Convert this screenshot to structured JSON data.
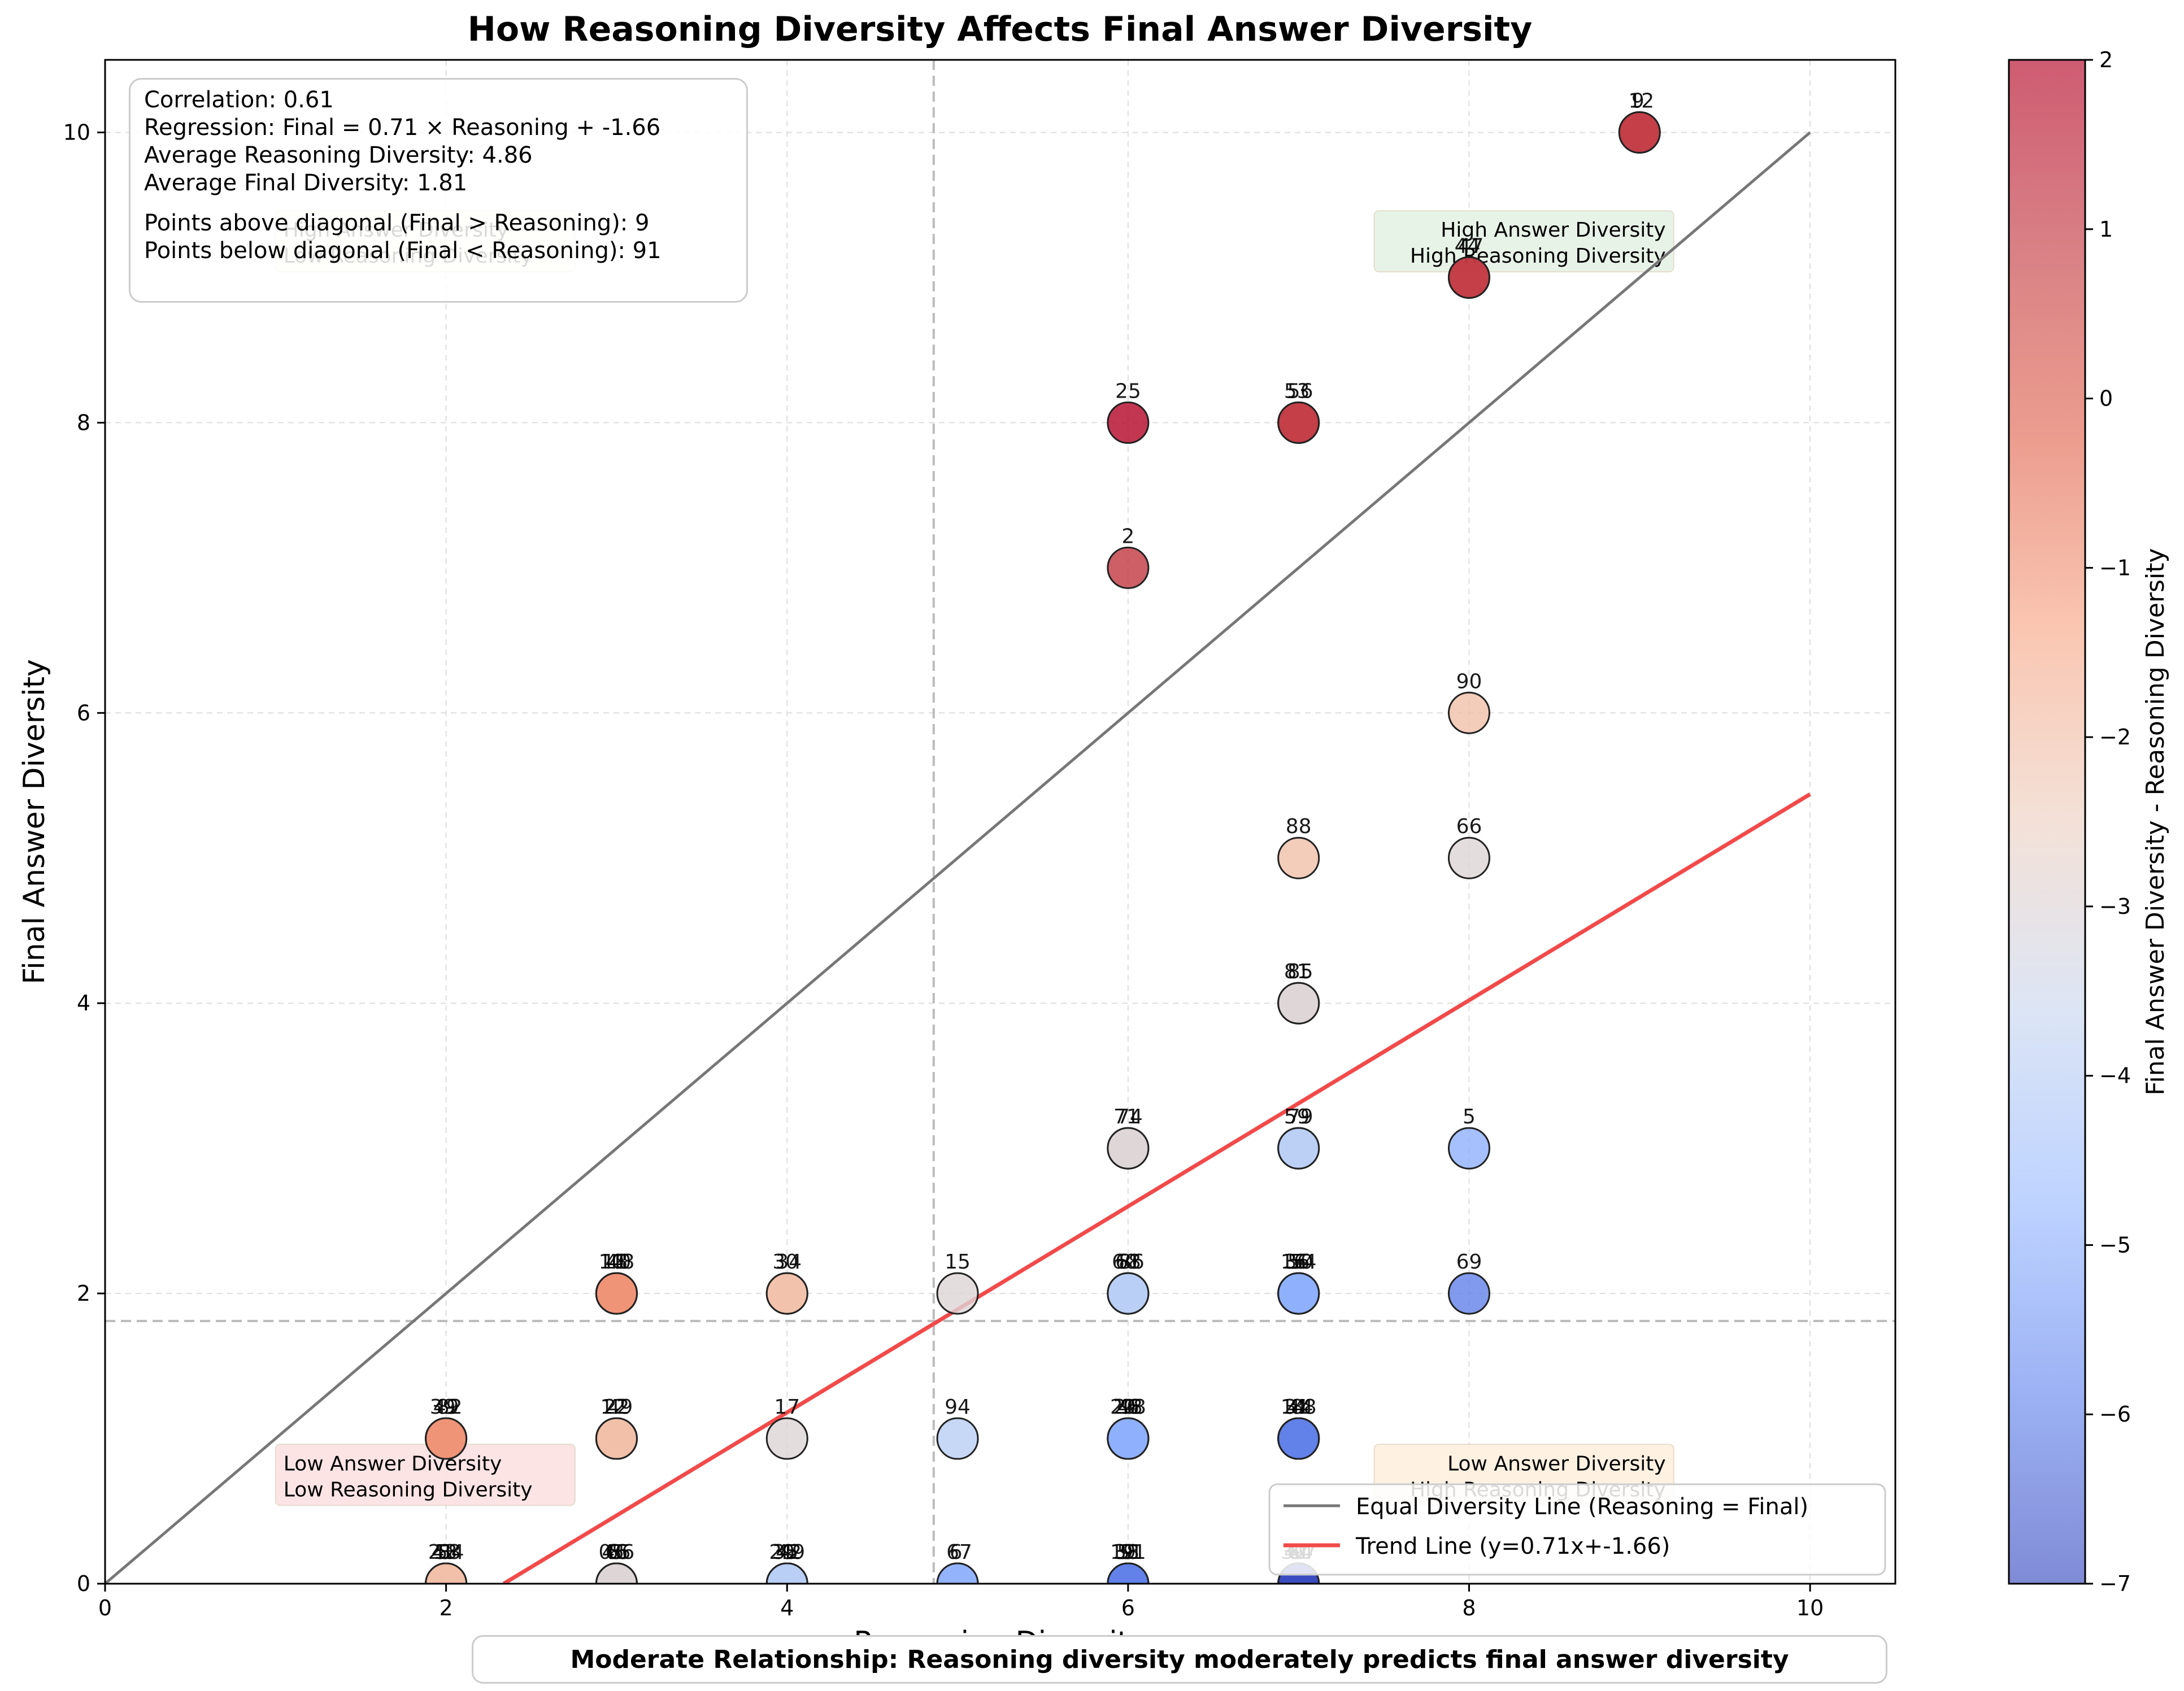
{
  "chart_data": {
    "type": "scatter",
    "title": "How Reasoning Diversity Affects Final Answer Diversity",
    "xlabel": "Reasoning Diversity",
    "ylabel": "Final Answer Diversity",
    "xlim": [
      0,
      10.5
    ],
    "ylim": [
      0,
      10.5
    ],
    "xticks": [
      "0",
      "2",
      "4",
      "6",
      "8",
      "10"
    ],
    "yticks": [
      "0",
      "2",
      "4",
      "6",
      "8",
      "10"
    ],
    "grid": true,
    "colorbar": {
      "label": "Final Answer Diversity - Reasoning Diversity",
      "colormap": "coolwarm",
      "range": [
        -7,
        2
      ],
      "ticks": [
        "2",
        "1",
        "0",
        "−1",
        "−2",
        "−3",
        "−4",
        "−5",
        "−6",
        "−7"
      ]
    },
    "points": [
      {
        "x": 9,
        "y": 10,
        "labels": [
          "9",
          "12"
        ]
      },
      {
        "x": 8,
        "y": 9,
        "labels": [
          "44",
          "47"
        ]
      },
      {
        "x": 6,
        "y": 8,
        "labels": [
          "25"
        ]
      },
      {
        "x": 7,
        "y": 8,
        "labels": [
          "53",
          "56"
        ]
      },
      {
        "x": 6,
        "y": 7,
        "labels": [
          "2"
        ]
      },
      {
        "x": 8,
        "y": 6,
        "labels": [
          "90"
        ]
      },
      {
        "x": 7,
        "y": 5,
        "labels": [
          "88"
        ]
      },
      {
        "x": 8,
        "y": 5,
        "labels": [
          "66"
        ]
      },
      {
        "x": 7,
        "y": 4,
        "labels": [
          "81",
          "85"
        ]
      },
      {
        "x": 6,
        "y": 3,
        "labels": [
          "71",
          "74"
        ]
      },
      {
        "x": 7,
        "y": 3,
        "labels": [
          "59",
          "79"
        ]
      },
      {
        "x": 8,
        "y": 3,
        "labels": [
          "5"
        ]
      },
      {
        "x": 3,
        "y": 2,
        "labels": [
          "10",
          "18",
          "40",
          "48"
        ]
      },
      {
        "x": 4,
        "y": 2,
        "labels": [
          "30",
          "34"
        ]
      },
      {
        "x": 5,
        "y": 2,
        "labels": [
          "15"
        ]
      },
      {
        "x": 6,
        "y": 2,
        "labels": [
          "60",
          "68",
          "86"
        ]
      },
      {
        "x": 7,
        "y": 2,
        "labels": [
          "16",
          "36",
          "50",
          "54"
        ]
      },
      {
        "x": 8,
        "y": 2,
        "labels": [
          "69"
        ]
      },
      {
        "x": 2,
        "y": 1,
        "labels": [
          "39",
          "49",
          "82"
        ]
      },
      {
        "x": 3,
        "y": 1,
        "labels": [
          "12",
          "22",
          "49"
        ]
      },
      {
        "x": 4,
        "y": 1,
        "labels": [
          "17"
        ]
      },
      {
        "x": 5,
        "y": 1,
        "labels": [
          "94"
        ]
      },
      {
        "x": 6,
        "y": 1,
        "labels": [
          "20",
          "26",
          "48",
          "98"
        ]
      },
      {
        "x": 7,
        "y": 1,
        "labels": [
          "14",
          "31",
          "44",
          "88"
        ]
      },
      {
        "x": 2,
        "y": 0,
        "labels": [
          "21",
          "43",
          "58",
          "84"
        ]
      },
      {
        "x": 3,
        "y": 0,
        "labels": [
          "05",
          "46",
          "65",
          "86"
        ]
      },
      {
        "x": 4,
        "y": 0,
        "labels": [
          "29",
          "35",
          "42",
          "49"
        ]
      },
      {
        "x": 5,
        "y": 0,
        "labels": [
          "6",
          "67"
        ]
      },
      {
        "x": 6,
        "y": 0,
        "labels": [
          "19",
          "38",
          "51",
          "91"
        ]
      },
      {
        "x": 7,
        "y": 0,
        "labels": [
          "30",
          "41",
          "64",
          "97"
        ]
      }
    ],
    "reference_lines": {
      "mean_reasoning": 4.86,
      "mean_final": 1.81,
      "trend_slope": 0.71,
      "trend_intercept": -1.66
    },
    "legend_position": "lower-right",
    "legend": [
      {
        "label": "Equal Diversity Line (Reasoning = Final)",
        "color": "#777777"
      },
      {
        "label": "Trend Line (y=0.71x+-1.66)",
        "color": "#f24a4a"
      }
    ],
    "quadrant_labels": [
      {
        "line1": "High Answer Diversity",
        "line2": "Low Reasoning Diversity",
        "bg": "#fffde0"
      },
      {
        "line1": "High Answer Diversity",
        "line2": "High Reasoning Diversity",
        "bg": "#e6f2e6"
      },
      {
        "line1": "Low Answer Diversity",
        "line2": "Low Reasoning Diversity",
        "bg": "#fde2e2"
      },
      {
        "line1": "Low Answer Diversity",
        "line2": "High Reasoning Diversity",
        "bg": "#fff0de"
      }
    ]
  },
  "stats": {
    "correlation": "Correlation: 0.61",
    "regression": "Regression: Final = 0.71 × Reasoning + -1.66",
    "avg_reasoning": "Average Reasoning Diversity: 4.86",
    "avg_final": "Average Final Diversity: 1.81",
    "above": "Points above diagonal (Final > Reasoning): 9",
    "below": "Points below diagonal (Final < Reasoning): 91"
  },
  "footer_note": "Moderate Relationship: Reasoning diversity moderately predicts final answer diversity"
}
